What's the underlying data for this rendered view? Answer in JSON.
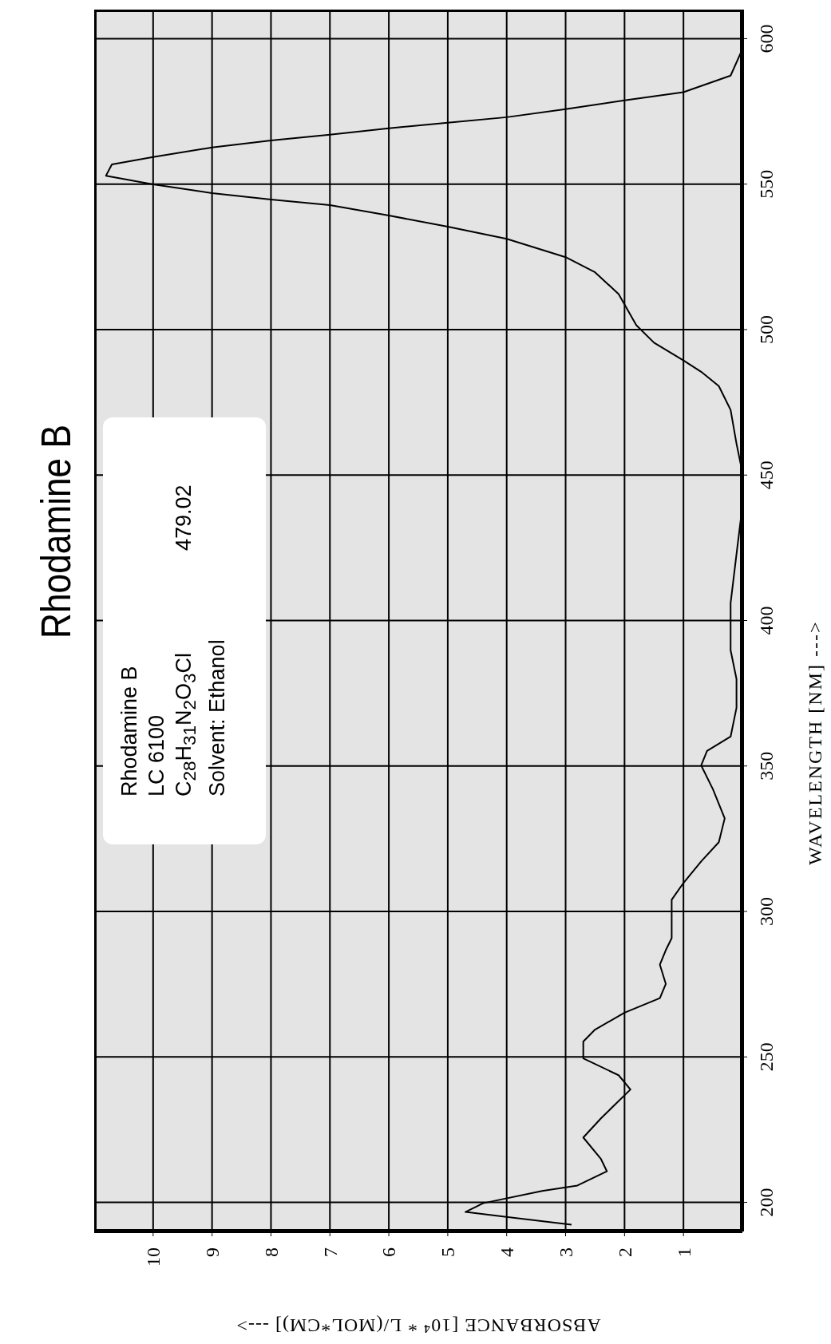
{
  "chart_data": {
    "type": "line",
    "title": "Rhodamine B",
    "xlabel": "ABSORBANCE [10⁴ * L/(MOL*CM)] --->",
    "ylabel": "WAVELENGTH [NM] --->",
    "annotations": [
      "Rhodamine B",
      "LC 6100",
      "C$_{28}$H$_{31}$N$_{2}$O$_{3}$Cl",
      "Solvent: Ethanol",
      "479.02"
    ],
    "xlim": [
      11,
      0
    ],
    "xticks": [
      10,
      9,
      8,
      7,
      6,
      5,
      4,
      3,
      2,
      1
    ],
    "ylim": [
      190,
      610
    ],
    "yticks": [
      200,
      250,
      300,
      350,
      400,
      450,
      500,
      550,
      600
    ],
    "grid": true,
    "marker": "none",
    "series": [
      {
        "color": "#000000",
        "x": [
          2.9,
          4.7,
          4.4,
          3.4,
          2.8,
          2.3,
          2.4,
          2.7,
          2.4,
          1.9,
          2.1,
          2.7,
          2.7,
          2.5,
          2.0,
          1.4,
          1.3,
          1.4,
          1.3,
          1.2,
          1.2,
          1.0,
          0.7,
          0.4,
          0.3,
          0.5,
          0.7,
          0.6,
          0.2,
          0.1,
          0.1,
          0.2,
          0.2,
          0.1,
          0.0,
          0.0,
          0.1,
          0.2,
          0.4,
          0.7,
          1.0,
          1.5,
          1.8,
          2.1,
          2.5,
          3.0,
          4.0,
          5.0,
          6.0,
          7.0,
          8.0,
          9.0,
          10.0,
          10.8,
          10.7,
          10.0,
          9.0,
          8.0,
          7.0,
          6.0,
          5.0,
          4.0,
          3.0,
          2.0,
          1.0,
          0.2,
          0.0
        ],
        "values": [
          192.3,
          196.7,
          199.7,
          203.9,
          205.8,
          210.7,
          214.9,
          222.3,
          228.9,
          238.8,
          243.7,
          249.5,
          255.3,
          259.4,
          265.2,
          270.2,
          275.1,
          281.7,
          286.7,
          290.8,
          304,
          309.8,
          317.2,
          323.8,
          332,
          342,
          350.2,
          355.2,
          360.1,
          370,
          379.9,
          389.8,
          406,
          422.8,
          439.3,
          450.9,
          460.8,
          472.4,
          480.6,
          485.5,
          489.4,
          495.5,
          501.5,
          512.2,
          519.7,
          524.9,
          531.2,
          535.4,
          539.2,
          542.8,
          544.7,
          546.9,
          549.9,
          552.9,
          556.8,
          559.3,
          562.6,
          565,
          567,
          569.2,
          571.1,
          573,
          575.8,
          578.8,
          581.6,
          587.3,
          596.4
        ]
      }
    ]
  }
}
